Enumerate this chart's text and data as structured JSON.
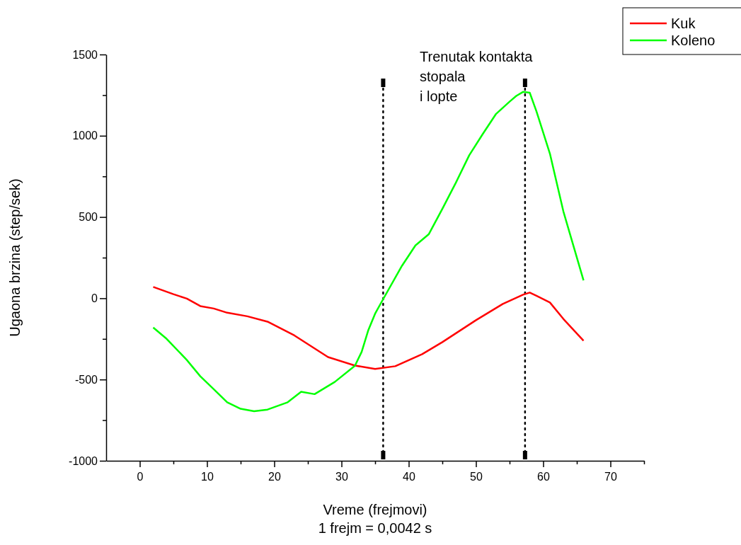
{
  "chart_data": {
    "type": "line",
    "xlabel": "Vreme (frejmovi)\n1 frejm = 0,0042 s",
    "ylabel": "Ugaona brzina (step/sek)",
    "xlim": [
      -5,
      75
    ],
    "xticks": [
      0,
      {
        "value": 5,
        "label": null
      },
      10,
      {
        "value": 15,
        "label": null
      },
      20,
      {
        "value": 25,
        "label": null
      },
      30,
      {
        "value": 35,
        "label": null
      },
      40,
      {
        "value": 45,
        "label": null
      },
      50,
      {
        "value": 55,
        "label": null
      },
      60,
      {
        "value": 65,
        "label": null
      },
      70,
      {
        "value": 75,
        "label": null
      }
    ],
    "ylim": [
      -1000,
      1500
    ],
    "yticks": [
      -1000,
      {
        "value": -750,
        "label": null
      },
      -500,
      {
        "value": -250,
        "label": null
      },
      0,
      {
        "value": 250,
        "label": null
      },
      500,
      {
        "value": 750,
        "label": null
      },
      1000,
      {
        "value": 1250,
        "label": null
      },
      1500
    ],
    "legend": "top right",
    "line_style": "solid",
    "marker": "none",
    "series": [
      {
        "name": "Kuk",
        "color": "#ff0000",
        "x": [
          2,
          5,
          7,
          9,
          11,
          13,
          16,
          19,
          23,
          28,
          32,
          35,
          38,
          42,
          45,
          50,
          54,
          57,
          58,
          59,
          61,
          63,
          66
        ],
        "values": [
          70,
          25,
          -2,
          -48,
          -63,
          -89,
          -111,
          -144,
          -229,
          -362,
          -414,
          -435,
          -418,
          -344,
          -270,
          -135,
          -35,
          22,
          35,
          15,
          -26,
          -127,
          -261
        ]
      },
      {
        "name": "Koleno",
        "color": "#00ff00",
        "x": [
          2,
          4,
          7,
          9,
          11,
          13,
          15,
          17,
          19,
          22,
          24,
          26,
          29,
          32,
          33,
          34,
          35,
          36,
          39,
          41,
          43,
          45,
          47,
          49,
          51,
          53,
          55,
          56,
          57,
          58,
          59,
          61,
          63,
          66
        ],
        "values": [
          -180,
          -250,
          -380,
          -480,
          -560,
          -640,
          -680,
          -695,
          -685,
          -640,
          -575,
          -590,
          -515,
          -415,
          -330,
          -195,
          -95,
          -20,
          200,
          325,
          395,
          550,
          710,
          880,
          1010,
          1135,
          1210,
          1245,
          1270,
          1265,
          1150,
          890,
          535,
          110
        ]
      }
    ],
    "ref_lines": [
      {
        "axis": "x",
        "value": 36.2,
        "color": "#000000",
        "line_style": "dotted"
      },
      {
        "axis": "x",
        "value": 57.3,
        "color": "#000000",
        "line_style": "dotted"
      }
    ],
    "annotations": [
      "Trenutak kontakta\nstopala\ni lopte"
    ]
  }
}
